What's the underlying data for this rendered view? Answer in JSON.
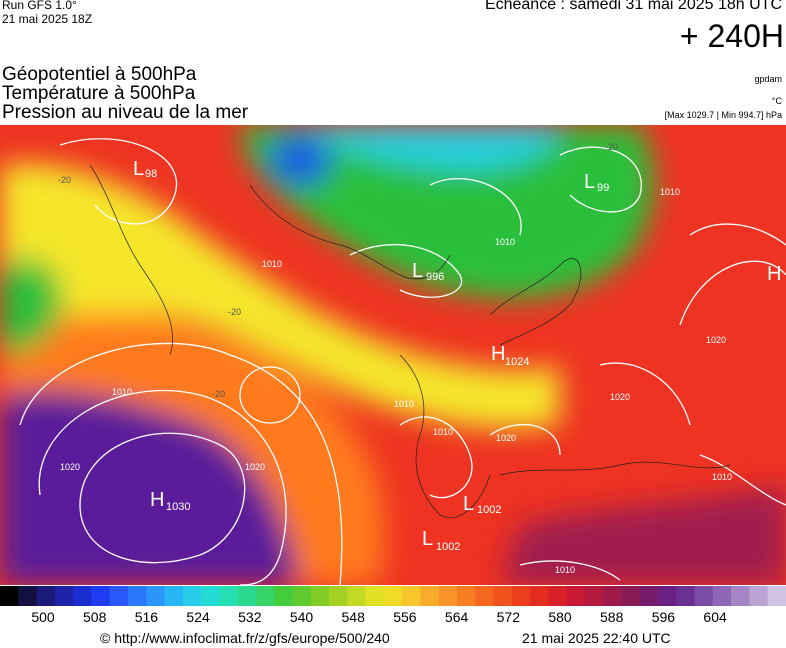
{
  "header": {
    "run": "Run GFS 1.0°",
    "run_date": "21 mai 2025 18Z",
    "echeance": "Echéance : samedi 31 mai 2025 18h UTC",
    "horizon": "+ 240H"
  },
  "fields": [
    "Géopotentiel à 500hPa",
    "Température à 500hPa",
    "Pression au niveau de la mer"
  ],
  "units": {
    "geopotential": "gpdam",
    "temperature": "°C",
    "pressure_range": "[Max 1029.7 | Min 994.7] hPa"
  },
  "pressure_centers": [
    {
      "type": "L",
      "value": "98"
    },
    {
      "type": "L",
      "value": "996"
    },
    {
      "type": "L",
      "value": "99"
    },
    {
      "type": "H",
      "value": ""
    },
    {
      "type": "H",
      "value": "1024"
    },
    {
      "type": "H",
      "value": "1030"
    },
    {
      "type": "L",
      "value": "1002"
    },
    {
      "type": "L",
      "value": "1002"
    }
  ],
  "isobar_labels": [
    "1010",
    "1010",
    "1020",
    "1010",
    "1020",
    "1010",
    "1010",
    "1010",
    "1020",
    "1010",
    "1010",
    "1020",
    "1020"
  ],
  "isotherm_labels": [
    "-20",
    "-20",
    "-20",
    "-20"
  ],
  "colors": {
    "purple": "#5a1a9a",
    "red": "#ee3322",
    "orange": "#ff7a1a",
    "yellow": "#f5e62a",
    "green": "#2bbf3a",
    "cyan": "#27d0e0",
    "blue": "#1d5fe0"
  },
  "scale": {
    "labels": [
      "500",
      "508",
      "516",
      "524",
      "532",
      "540",
      "548",
      "556",
      "564",
      "572",
      "580",
      "588",
      "596",
      "604"
    ],
    "colors": [
      "#000000",
      "#141040",
      "#1b1a78",
      "#1d24a8",
      "#1a2dd0",
      "#1f3cf2",
      "#2a57fa",
      "#2a78fa",
      "#2a96fa",
      "#28b5f6",
      "#27cdea",
      "#25dcd4",
      "#25dfb2",
      "#2ad98e",
      "#36d466",
      "#43cc3c",
      "#5fca2e",
      "#83cc26",
      "#a3d224",
      "#c3da24",
      "#e1e226",
      "#f0dc26",
      "#f6c62a",
      "#f8ad2a",
      "#f89428",
      "#f67d22",
      "#f4671e",
      "#f0521c",
      "#ec3e1c",
      "#e42c20",
      "#d82028",
      "#c81a34",
      "#b41a40",
      "#9e1a4a",
      "#881a56",
      "#761c6a",
      "#6a2080",
      "#6a3094",
      "#7a4ca6",
      "#8e68b6",
      "#a486c6",
      "#baa4d4",
      "#d0c4e2"
    ]
  },
  "footer": {
    "url": "© http://www.infoclimat.fr/z/gfs/europe/500/240",
    "date": "21 mai 2025 22:40 UTC"
  }
}
